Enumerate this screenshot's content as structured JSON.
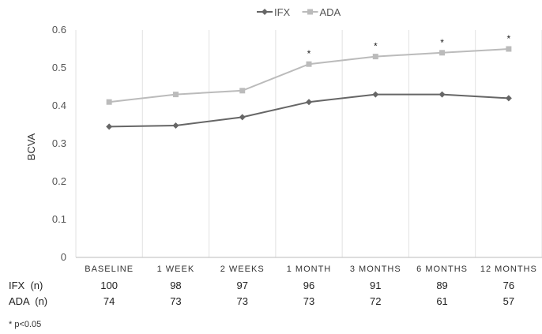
{
  "chart_data": {
    "type": "line",
    "title": "",
    "xlabel": "",
    "ylabel": "BCVA",
    "ylim": [
      0,
      0.6
    ],
    "yticks": [
      "0",
      "0.1",
      "0.2",
      "0.3",
      "0.4",
      "0.5",
      "0.6"
    ],
    "grid": "vertical",
    "legend_position": "top-center",
    "categories": [
      "BASELINE",
      "1 WEEK",
      "2 WEEKS",
      "1 MONTH",
      "3 MONTHS",
      "6 MONTHS",
      "12 MONTHS"
    ],
    "series": [
      {
        "name": "IFX",
        "color": "#666666",
        "marker": "diamond",
        "values": [
          0.345,
          0.348,
          0.37,
          0.41,
          0.43,
          0.43,
          0.42
        ]
      },
      {
        "name": "ADA",
        "color": "#bbbbbb",
        "marker": "square",
        "values": [
          0.41,
          0.43,
          0.44,
          0.51,
          0.53,
          0.54,
          0.55
        ]
      }
    ],
    "significance_marker": "*",
    "significant_categories": [
      false,
      false,
      false,
      true,
      true,
      true,
      true
    ]
  },
  "n_table": {
    "rows": [
      {
        "label": "IFX  (n)",
        "values": [
          "100",
          "98",
          "97",
          "96",
          "91",
          "89",
          "76"
        ]
      },
      {
        "label": "ADA  (n)",
        "values": [
          "74",
          "73",
          "73",
          "73",
          "72",
          "61",
          "57"
        ]
      }
    ]
  },
  "footnote": "* p<0.05"
}
